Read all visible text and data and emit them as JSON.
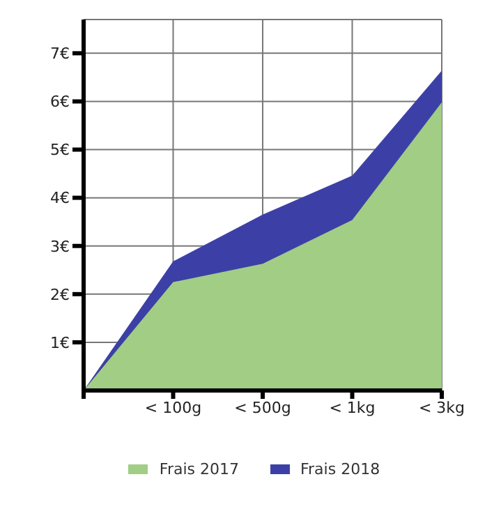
{
  "chart_data": {
    "type": "area",
    "categories": [
      null,
      "< 100g",
      "< 500g",
      "< 1kg",
      "< 3kg"
    ],
    "series": [
      {
        "name": "Frais 2017",
        "color": "#a1cd85",
        "values": [
          0,
          2.25,
          2.63,
          3.54,
          5.98
        ]
      },
      {
        "name": "Frais 2018",
        "color": "#3c40a6",
        "values": [
          0,
          2.68,
          3.65,
          4.46,
          6.64
        ]
      }
    ],
    "ylim": [
      0,
      7.7
    ],
    "yticks": [
      {
        "value": 1,
        "label": "1€"
      },
      {
        "value": 2,
        "label": "2€"
      },
      {
        "value": 3,
        "label": "3€"
      },
      {
        "value": 4,
        "label": "4€"
      },
      {
        "value": 5,
        "label": "5€"
      },
      {
        "value": 6,
        "label": "6€"
      },
      {
        "value": 7,
        "label": "7€"
      }
    ],
    "grid": true,
    "legend": "bottom"
  }
}
